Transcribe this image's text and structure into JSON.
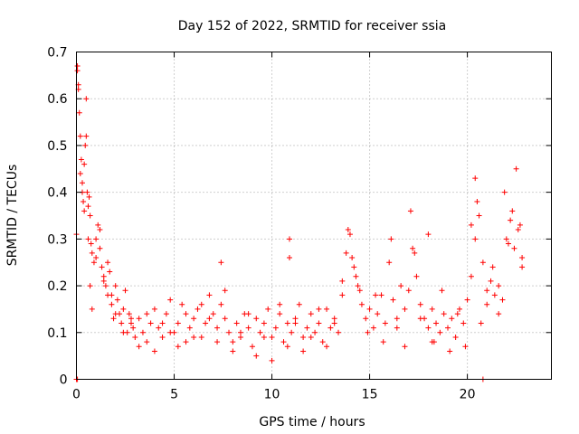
{
  "chart_data": {
    "type": "scatter",
    "title": "Day 152 of 2022, SRMTID for receiver ssia",
    "xlabel": "GPS time / hours",
    "ylabel": "SRMTID / TECUs",
    "xlim": [
      0,
      24.3
    ],
    "ylim": [
      0,
      0.7
    ],
    "x_ticks": [
      0,
      5,
      10,
      15,
      20
    ],
    "y_ticks": [
      0,
      0.1,
      0.2,
      0.3,
      0.4,
      0.5,
      0.6,
      0.7
    ],
    "x_tick_labels": [
      "0",
      "5",
      "10",
      "15",
      "20"
    ],
    "y_tick_labels": [
      "0",
      "0.1",
      "0.2",
      "0.3",
      "0.4",
      "0.5",
      "0.6",
      "0.7"
    ],
    "grid": true,
    "marker": "+",
    "color": "#ff0000",
    "series": [
      {
        "name": "SRMTID",
        "x": [
          0.0,
          0.05,
          0.1,
          0.15,
          0.2,
          0.25,
          0.3,
          0.35,
          0.4,
          0.45,
          0.5,
          0.55,
          0.6,
          0.65,
          0.7,
          0.75,
          0.8,
          0.9,
          1.0,
          1.1,
          1.2,
          1.3,
          1.4,
          1.5,
          1.6,
          1.7,
          1.8,
          1.9,
          2.0,
          2.1,
          2.2,
          2.3,
          2.4,
          2.5,
          2.6,
          2.7,
          2.8,
          2.9,
          3.0,
          3.2,
          3.4,
          3.6,
          3.8,
          4.0,
          4.2,
          4.4,
          4.6,
          4.8,
          5.0,
          5.2,
          5.4,
          5.6,
          5.8,
          6.0,
          6.2,
          6.4,
          6.6,
          6.8,
          7.0,
          7.2,
          7.4,
          7.6,
          7.8,
          8.0,
          8.2,
          8.4,
          8.6,
          8.8,
          9.0,
          9.2,
          9.4,
          9.6,
          9.8,
          10.0,
          10.2,
          10.4,
          10.6,
          10.8,
          11.0,
          11.2,
          11.4,
          11.6,
          11.8,
          12.0,
          12.2,
          12.4,
          12.6,
          12.8,
          13.0,
          13.2,
          13.4,
          13.6,
          13.8,
          14.0,
          14.2,
          14.4,
          14.6,
          14.8,
          15.0,
          15.2,
          15.4,
          15.6,
          15.8,
          16.0,
          16.2,
          16.4,
          16.6,
          16.8,
          17.0,
          17.2,
          17.4,
          17.6,
          17.8,
          18.0,
          18.2,
          18.4,
          18.6,
          18.8,
          19.0,
          19.2,
          19.4,
          19.6,
          19.8,
          20.0,
          20.2,
          20.4,
          20.6,
          20.8,
          21.0,
          21.2,
          21.4,
          21.6,
          21.8,
          22.0,
          22.2,
          22.4,
          22.6,
          22.8,
          0.05,
          0.1,
          0.2,
          0.3,
          0.4,
          0.5,
          0.6,
          0.7,
          0.8,
          1.0,
          1.2,
          1.4,
          1.6,
          1.8,
          2.0,
          2.4,
          2.8,
          3.2,
          3.6,
          4.0,
          4.4,
          4.8,
          5.2,
          5.6,
          6.0,
          6.4,
          6.8,
          7.2,
          7.6,
          8.0,
          8.4,
          8.8,
          9.2,
          9.6,
          10.0,
          10.4,
          10.8,
          11.2,
          11.6,
          12.0,
          12.4,
          12.8,
          13.2,
          13.6,
          13.9,
          14.1,
          14.3,
          14.5,
          14.9,
          15.3,
          15.7,
          16.1,
          16.4,
          16.8,
          17.1,
          17.3,
          17.6,
          18.0,
          18.3,
          18.7,
          19.1,
          19.5,
          19.9,
          20.2,
          20.4,
          20.5,
          20.7,
          21.0,
          21.3,
          21.6,
          21.9,
          22.1,
          22.3,
          22.5,
          22.7,
          22.8,
          7.4,
          10.9,
          10.9,
          18.2,
          0.0,
          0.05,
          20.8
        ],
        "y": [
          0.31,
          0.66,
          0.63,
          0.57,
          0.52,
          0.47,
          0.42,
          0.38,
          0.36,
          0.5,
          0.6,
          0.4,
          0.37,
          0.39,
          0.35,
          0.29,
          0.27,
          0.25,
          0.3,
          0.33,
          0.28,
          0.24,
          0.22,
          0.2,
          0.18,
          0.23,
          0.16,
          0.13,
          0.2,
          0.17,
          0.14,
          0.12,
          0.15,
          0.19,
          0.1,
          0.14,
          0.12,
          0.11,
          0.09,
          0.13,
          0.1,
          0.08,
          0.12,
          0.15,
          0.11,
          0.09,
          0.14,
          0.17,
          0.1,
          0.12,
          0.16,
          0.08,
          0.11,
          0.13,
          0.15,
          0.09,
          0.12,
          0.18,
          0.14,
          0.11,
          0.16,
          0.13,
          0.1,
          0.08,
          0.12,
          0.09,
          0.14,
          0.11,
          0.07,
          0.13,
          0.1,
          0.12,
          0.15,
          0.09,
          0.11,
          0.14,
          0.08,
          0.12,
          0.1,
          0.13,
          0.16,
          0.09,
          0.11,
          0.14,
          0.1,
          0.12,
          0.08,
          0.15,
          0.11,
          0.13,
          0.1,
          0.18,
          0.27,
          0.31,
          0.24,
          0.2,
          0.16,
          0.13,
          0.15,
          0.11,
          0.14,
          0.18,
          0.12,
          0.25,
          0.17,
          0.13,
          0.2,
          0.15,
          0.19,
          0.28,
          0.22,
          0.16,
          0.13,
          0.11,
          0.15,
          0.12,
          0.1,
          0.14,
          0.11,
          0.13,
          0.09,
          0.15,
          0.12,
          0.17,
          0.22,
          0.3,
          0.35,
          0.25,
          0.19,
          0.21,
          0.18,
          0.2,
          0.17,
          0.3,
          0.34,
          0.28,
          0.32,
          0.26,
          0.67,
          0.62,
          0.44,
          0.4,
          0.46,
          0.52,
          0.3,
          0.2,
          0.15,
          0.26,
          0.32,
          0.21,
          0.25,
          0.18,
          0.14,
          0.1,
          0.13,
          0.07,
          0.14,
          0.06,
          0.12,
          0.1,
          0.07,
          0.14,
          0.09,
          0.16,
          0.13,
          0.08,
          0.19,
          0.06,
          0.1,
          0.14,
          0.05,
          0.09,
          0.04,
          0.16,
          0.07,
          0.12,
          0.06,
          0.09,
          0.15,
          0.07,
          0.12,
          0.21,
          0.32,
          0.26,
          0.22,
          0.19,
          0.1,
          0.18,
          0.08,
          0.3,
          0.11,
          0.07,
          0.36,
          0.27,
          0.13,
          0.31,
          0.08,
          0.19,
          0.06,
          0.14,
          0.07,
          0.33,
          0.43,
          0.38,
          0.12,
          0.16,
          0.24,
          0.14,
          0.4,
          0.29,
          0.36,
          0.45,
          0.33,
          0.24,
          0.25,
          0.3,
          0.26,
          0.08,
          0.0,
          0.0,
          0.0
        ]
      }
    ]
  }
}
